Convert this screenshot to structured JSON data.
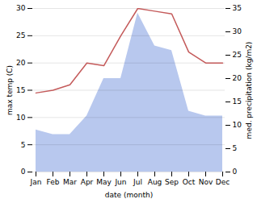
{
  "chart_data": {
    "type": "line",
    "xlabel": "date (month)",
    "ylabel": "max temp (C)",
    "y2label": "med. precipitation (kg/m2)",
    "categories": [
      "Jan",
      "Feb",
      "Mar",
      "Apr",
      "May",
      "Jun",
      "Jul",
      "Aug",
      "Sep",
      "Oct",
      "Nov",
      "Dec"
    ],
    "series": [
      {
        "type": "area",
        "axis": "y2",
        "color": "#b8c8ee",
        "values": [
          9.0,
          8.0,
          8.0,
          12.0,
          20.0,
          20.0,
          34.0,
          27.0,
          26.0,
          13.0,
          12.0,
          12.0
        ]
      },
      {
        "type": "line",
        "color": "#c45a5a",
        "values": [
          14.5,
          15.0,
          16.0,
          20.0,
          19.5,
          25.0,
          30.0,
          29.5,
          29.0,
          22.0,
          20.0,
          20.0
        ]
      }
    ],
    "ylim": [
      0,
      30
    ],
    "yticks": [
      0,
      5,
      10,
      15,
      20,
      25,
      30
    ],
    "y2lim": [
      0,
      35
    ],
    "y2ticks": [
      0,
      5,
      10,
      15,
      20,
      25,
      30,
      35
    ],
    "grid": true
  }
}
